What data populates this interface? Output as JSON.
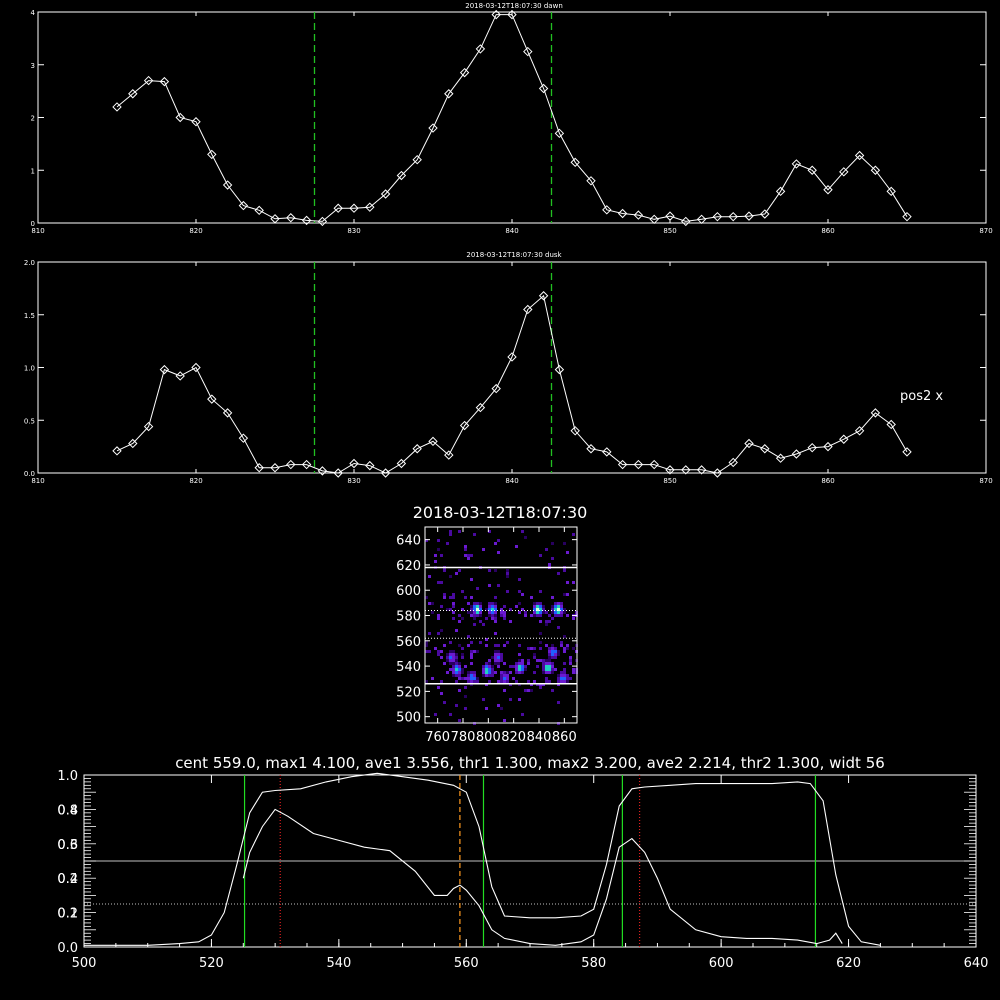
{
  "chart_data": [
    {
      "type": "line",
      "title": "2018-03-12T18:07:30 dawn",
      "xlim": [
        810,
        870
      ],
      "ylim": [
        0,
        4
      ],
      "xticks": [
        "810",
        "820",
        "830",
        "840",
        "850",
        "860",
        "870"
      ],
      "yticks": [
        "0",
        "1",
        "2",
        "3",
        "4"
      ],
      "markers": "diamond",
      "vlines": [
        827.5,
        842.5
      ],
      "x": [
        815,
        816,
        817,
        818,
        819,
        820,
        821,
        822,
        823,
        824,
        825,
        826,
        827,
        828,
        829,
        830,
        831,
        832,
        833,
        834,
        835,
        836,
        837,
        838,
        839,
        840,
        841,
        842,
        843,
        844,
        845,
        846,
        847,
        848,
        849,
        850,
        851,
        852,
        853,
        854,
        855,
        856,
        857,
        858,
        859,
        860,
        861,
        862,
        863,
        864,
        865
      ],
      "values": [
        2.2,
        2.45,
        2.7,
        2.68,
        2.0,
        1.92,
        1.3,
        0.72,
        0.33,
        0.24,
        0.08,
        0.1,
        0.05,
        0.03,
        0.28,
        0.28,
        0.3,
        0.55,
        0.9,
        1.2,
        1.8,
        2.45,
        2.85,
        3.3,
        3.95,
        3.95,
        3.25,
        2.55,
        1.7,
        1.15,
        0.8,
        0.25,
        0.18,
        0.15,
        0.07,
        0.13,
        0.03,
        0.07,
        0.12,
        0.12,
        0.13,
        0.17,
        0.6,
        1.12,
        1.0,
        0.63,
        0.97,
        1.28,
        1.0,
        0.6,
        0.12
      ]
    },
    {
      "type": "line",
      "title": "2018-03-12T18:07:30 dusk",
      "annotation": "pos2 x",
      "xlim": [
        810,
        870
      ],
      "ylim": [
        0,
        2
      ],
      "xticks": [
        "810",
        "820",
        "830",
        "840",
        "850",
        "860",
        "870"
      ],
      "yticks": [
        "0.0",
        "0.5",
        "1.0",
        "1.5",
        "2.0"
      ],
      "markers": "diamond",
      "vlines": [
        827.5,
        842.5
      ],
      "x": [
        815,
        816,
        817,
        818,
        819,
        820,
        821,
        822,
        823,
        824,
        825,
        826,
        827,
        828,
        829,
        830,
        831,
        832,
        833,
        834,
        835,
        836,
        837,
        838,
        839,
        840,
        841,
        842,
        843,
        844,
        845,
        846,
        847,
        848,
        849,
        850,
        851,
        852,
        853,
        854,
        855,
        856,
        857,
        858,
        859,
        860,
        861,
        862,
        863,
        864,
        865
      ],
      "values": [
        0.21,
        0.28,
        0.44,
        0.98,
        0.92,
        1.0,
        0.7,
        0.57,
        0.33,
        0.05,
        0.05,
        0.08,
        0.08,
        0.02,
        0.0,
        0.09,
        0.07,
        0.0,
        0.09,
        0.23,
        0.3,
        0.17,
        0.45,
        0.62,
        0.8,
        1.1,
        1.55,
        1.68,
        0.98,
        0.4,
        0.23,
        0.2,
        0.08,
        0.08,
        0.08,
        0.03,
        0.03,
        0.03,
        0.0,
        0.1,
        0.28,
        0.23,
        0.14,
        0.18,
        0.24,
        0.25,
        0.32,
        0.4,
        0.57,
        0.46,
        0.2
      ]
    },
    {
      "type": "heatmap",
      "title": "2018-03-12T18:07:30",
      "xlim": [
        750,
        870
      ],
      "ylim": [
        495,
        650
      ],
      "xticks": [
        "760",
        "780",
        "800",
        "820",
        "840",
        "860"
      ],
      "yticks": [
        "500",
        "520",
        "540",
        "560",
        "580",
        "600",
        "620",
        "640"
      ],
      "solid_hlines": [
        526,
        618
      ],
      "dotted_hlines": [
        584,
        562
      ],
      "hotspots": [
        {
          "x": 790,
          "y": 586,
          "v": 0.9
        },
        {
          "x": 802,
          "y": 586,
          "v": 0.85
        },
        {
          "x": 838,
          "y": 586,
          "v": 0.9
        },
        {
          "x": 854,
          "y": 586,
          "v": 1.0
        },
        {
          "x": 774,
          "y": 538,
          "v": 0.8
        },
        {
          "x": 798,
          "y": 538,
          "v": 0.85
        },
        {
          "x": 824,
          "y": 540,
          "v": 0.8
        },
        {
          "x": 846,
          "y": 540,
          "v": 0.9
        },
        {
          "x": 786,
          "y": 532,
          "v": 0.7
        },
        {
          "x": 812,
          "y": 532,
          "v": 0.6
        },
        {
          "x": 858,
          "y": 532,
          "v": 0.65
        },
        {
          "x": 770,
          "y": 548,
          "v": 0.6
        },
        {
          "x": 806,
          "y": 548,
          "v": 0.6
        },
        {
          "x": 850,
          "y": 552,
          "v": 0.7
        }
      ]
    },
    {
      "type": "line",
      "title": "cent 559.0, max1 4.100, ave1 3.556, thr1 1.300, max2 3.200, ave2 2.214, thr2 1.300, widt 56",
      "xlim": [
        500,
        640
      ],
      "ylim": [
        0,
        1
      ],
      "xticks": [
        "500",
        "520",
        "540",
        "560",
        "580",
        "600",
        "620",
        "640"
      ],
      "yticks": [
        "0.0",
        "0.2",
        "0.4",
        "0.6",
        "0.8",
        "1.0"
      ],
      "overlap_yticks": [
        "0.1",
        "0.2",
        "0.3",
        "0.4"
      ],
      "solid_hline": 0.5,
      "dotted_hline": 0.25,
      "green_vlines": [
        525.2,
        562.7,
        584.5,
        614.8
      ],
      "red_dotted_vlines": [
        530.8,
        587.2
      ],
      "orange_dashed_vline": 559.0,
      "series": [
        {
          "x": [
            500,
            505,
            510,
            515,
            518,
            520,
            522,
            524,
            526,
            528,
            530,
            534,
            538,
            542,
            546,
            550,
            554,
            558,
            560,
            562,
            564,
            566,
            570,
            574,
            578,
            580,
            582,
            584,
            586,
            588,
            592,
            596,
            600,
            604,
            608,
            612,
            614,
            616,
            618,
            620,
            622,
            625
          ],
          "values": [
            0.01,
            0.01,
            0.01,
            0.02,
            0.03,
            0.07,
            0.2,
            0.48,
            0.78,
            0.9,
            0.91,
            0.92,
            0.96,
            0.99,
            1.01,
            0.99,
            0.97,
            0.94,
            0.9,
            0.7,
            0.35,
            0.18,
            0.17,
            0.17,
            0.18,
            0.22,
            0.48,
            0.82,
            0.92,
            0.93,
            0.94,
            0.95,
            0.95,
            0.95,
            0.95,
            0.96,
            0.95,
            0.85,
            0.42,
            0.12,
            0.03,
            0.01
          ]
        },
        {
          "x": [
            525,
            526,
            528,
            530,
            532,
            536,
            540,
            544,
            548,
            552,
            555,
            557,
            558,
            559,
            560,
            562,
            564,
            566,
            570,
            574,
            578,
            580,
            582,
            584,
            586,
            588,
            590,
            592,
            596,
            600,
            604,
            608,
            612,
            615,
            617,
            618,
            619
          ],
          "values": [
            0.4,
            0.55,
            0.7,
            0.8,
            0.76,
            0.66,
            0.62,
            0.58,
            0.56,
            0.44,
            0.3,
            0.3,
            0.34,
            0.36,
            0.33,
            0.24,
            0.1,
            0.05,
            0.02,
            0.01,
            0.03,
            0.07,
            0.28,
            0.58,
            0.63,
            0.55,
            0.4,
            0.22,
            0.1,
            0.06,
            0.05,
            0.05,
            0.04,
            0.02,
            0.04,
            0.08,
            0.02
          ]
        }
      ]
    }
  ]
}
